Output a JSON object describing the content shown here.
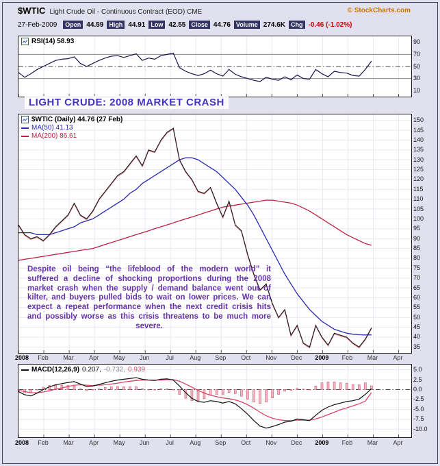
{
  "header": {
    "symbol": "$WTIC",
    "description": "Light Crude Oil - Continuous Contract (EOD) CME",
    "copyright": "© StockCharts.com",
    "date": "27-Feb-2009",
    "quote": [
      {
        "label": "Open",
        "value": "44.59"
      },
      {
        "label": "High",
        "value": "44.91"
      },
      {
        "label": "Low",
        "value": "42.55"
      },
      {
        "label": "Close",
        "value": "44.76"
      },
      {
        "label": "Volume",
        "value": "274.6K"
      },
      {
        "label": "Chg",
        "value": "-0.46 (-1.02%)",
        "value_color": "#cc0000"
      }
    ]
  },
  "title_overlay": "LIGHT CRUDE: 2008 MARKET CRASH",
  "annotation": "Despite oil being “the lifeblood of the modern world” it suffered a decline of shocking proportions during the 2008 market crash when the supply / demand balance went out of kilter, and buyers pulled bids to wait on lower prices. We can expect a repeat performance when the next credit crisis hits and possibly worse as this crisis threatens to be much more severe.",
  "colors": {
    "frame_bg": "#e0e0ee",
    "panel_bg": "#ffffff",
    "chip_navy": "#333366",
    "copyright": "#cc7700",
    "grid": "#e8e8f1",
    "band_line": "#888888",
    "dashdot_line": "#444444",
    "price": "#1a1a1a",
    "price_alt": "#bb1122",
    "ma50": "#2a2ab0",
    "ma200": "#bb2244",
    "rsi": "#15154d",
    "macd_line": "#111111",
    "macd_signal": "#dd4466",
    "hist_fill": "#f0b8c8",
    "hist_stroke": "#cc5566",
    "title": "#4433bb",
    "annotation": "#6633aa",
    "chg_negative": "#cc0000"
  },
  "chart_data": {
    "x_labels": [
      "2008",
      "Feb",
      "Mar",
      "Apr",
      "May",
      "Jun",
      "Jul",
      "Aug",
      "Sep",
      "Oct",
      "Nov",
      "Dec",
      "2009",
      "Feb",
      "Mar",
      "Apr"
    ],
    "x_span_label_units": 15.5,
    "data_span_label_units": 13.93,
    "panels": [
      {
        "type": "line",
        "name": "rsi",
        "legend": "RSI(14) 58.93",
        "ylim": [
          0,
          100
        ],
        "yticks": [
          90,
          70,
          50,
          30,
          10
        ],
        "overbought": 70,
        "oversold": 30,
        "midline": 50,
        "series": [
          {
            "name": "RSI(14)",
            "values": [
              40,
              32,
              38,
              45,
              50,
              55,
              60,
              62,
              63,
              66,
              55,
              50,
              55,
              60,
              64,
              67,
              68,
              65,
              68,
              71,
              60,
              64,
              62,
              68,
              70,
              72,
              48,
              42,
              38,
              35,
              38,
              44,
              38,
              34,
              45,
              37,
              33,
              30,
              27,
              25,
              32,
              29,
              27,
              33,
              28,
              36,
              30,
              29,
              45,
              38,
              33,
              42,
              40,
              39,
              35,
              34,
              45,
              58.93
            ]
          }
        ]
      },
      {
        "type": "line",
        "name": "price",
        "legend_main": "$WTIC (Daily) 44.76 (27 Feb)",
        "legend_ma50": "MA(50) 41.13",
        "legend_ma200": "MA(200) 86.61",
        "ylim": [
          32,
          153
        ],
        "ytick_step": 5,
        "yticks": [
          150,
          145,
          140,
          135,
          130,
          125,
          120,
          115,
          110,
          105,
          100,
          95,
          90,
          85,
          80,
          75,
          70,
          65,
          60,
          55,
          50,
          45,
          40,
          35
        ],
        "series": [
          {
            "name": "$WTIC close",
            "values": [
              97,
              92,
              90,
              91,
              89,
              92,
              96,
              99,
              102,
              108,
              102,
              100,
              104,
              110,
              114,
              118,
              122,
              124,
              128,
              132,
              127,
              135,
              134,
              140,
              144,
              146,
              130,
              124,
              120,
              114,
              113,
              116,
              108,
              101,
              109,
              97,
              94,
              82,
              72,
              64,
              67,
              57,
              50,
              54,
              41,
              46,
              37,
              35,
              46,
              40,
              36,
              42,
              41,
              40,
              37,
              35,
              39,
              44.76
            ]
          },
          {
            "name": "MA(50)",
            "values": [
              93,
              93,
              93,
              92,
              92,
              92,
              93,
              94,
              95,
              96,
              98,
              99,
              100,
              102,
              104,
              106,
              108,
              110,
              113,
              115,
              118,
              120,
              122,
              124,
              126,
              128,
              130,
              131,
              131,
              130,
              128,
              126,
              124,
              121,
              118,
              115,
              111,
              107,
              102,
              96,
              90,
              84,
              78,
              72,
              67,
              62,
              58,
              54,
              51,
              48,
              46,
              44,
              43,
              42,
              41.5,
              41.2,
              41.1,
              41.13
            ]
          },
          {
            "name": "MA(200)",
            "values": [
              79,
              79.5,
              80,
              80.5,
              81,
              81.5,
              82,
              82.5,
              83,
              83.5,
              84,
              84.5,
              85,
              86,
              87,
              88,
              89,
              90,
              91,
              92,
              93,
              94,
              95,
              96,
              97,
              98,
              99,
              100,
              101,
              102,
              103,
              104,
              105,
              106,
              106.5,
              107,
              107.5,
              108,
              108.5,
              109,
              109.5,
              109.5,
              109,
              108.5,
              108,
              107,
              105.5,
              104,
              102,
              100,
              98,
              96,
              94,
              92,
              90.5,
              89,
              87.5,
              86.61
            ]
          }
        ]
      },
      {
        "type": "line+histogram",
        "name": "macd",
        "legend": "MACD(12,26,9)",
        "macd_value": "0.207,",
        "signal_value": "-0.732,",
        "hist_value": "0.939",
        "ylim": [
          -12,
          6.3
        ],
        "yticks": [
          5.0,
          2.5,
          0.0,
          -2.5,
          -5.0,
          -7.5,
          -10.0
        ],
        "zero_line": 0,
        "series": [
          {
            "name": "MACD line",
            "values": [
              -0.5,
              -1.3,
              -1.6,
              -0.9,
              0.0,
              0.7,
              1.2,
              1.5,
              1.8,
              2.0,
              1.4,
              0.8,
              0.9,
              1.3,
              1.7,
              2.1,
              2.4,
              2.6,
              2.8,
              3.0,
              2.6,
              2.4,
              2.3,
              2.6,
              2.7,
              2.4,
              0.9,
              -0.8,
              -2.2,
              -3.0,
              -3.2,
              -2.8,
              -3.0,
              -3.4,
              -3.0,
              -3.6,
              -4.8,
              -6.2,
              -7.8,
              -9.2,
              -9.7,
              -9.3,
              -8.8,
              -8.2,
              -8.0,
              -7.4,
              -7.6,
              -7.8,
              -6.5,
              -5.2,
              -4.4,
              -3.8,
              -3.4,
              -3.0,
              -2.8,
              -2.4,
              -1.2,
              0.207
            ]
          },
          {
            "name": "Signal line",
            "values": [
              -0.2,
              -0.5,
              -0.8,
              -0.8,
              -0.6,
              -0.3,
              0.1,
              0.4,
              0.8,
              1.1,
              1.2,
              1.1,
              1.0,
              1.1,
              1.2,
              1.4,
              1.6,
              1.9,
              2.1,
              2.3,
              2.4,
              2.4,
              2.4,
              2.4,
              2.5,
              2.5,
              2.1,
              1.4,
              0.6,
              -0.2,
              -0.9,
              -1.4,
              -1.8,
              -2.1,
              -2.3,
              -2.6,
              -3.1,
              -3.8,
              -4.7,
              -5.7,
              -6.6,
              -7.2,
              -7.6,
              -7.8,
              -7.8,
              -7.7,
              -7.7,
              -7.7,
              -7.4,
              -6.9,
              -6.3,
              -5.7,
              -5.1,
              -4.6,
              -4.1,
              -3.6,
              -2.9,
              -0.732
            ]
          }
        ],
        "histogram": "macd_minus_signal"
      }
    ]
  }
}
